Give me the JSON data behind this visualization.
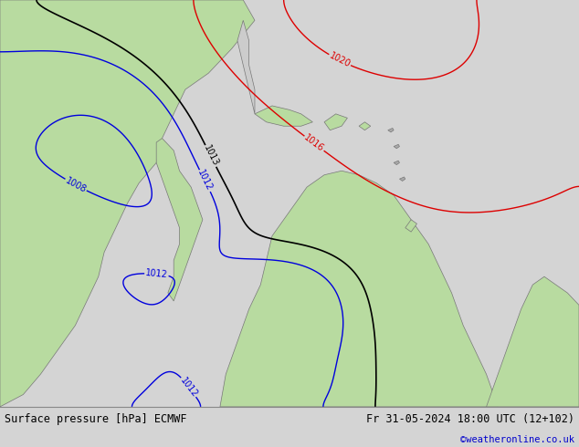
{
  "title_left": "Surface pressure [hPa] ECMWF",
  "title_right": "Fr 31-05-2024 18:00 UTC (12+102)",
  "credit": "©weatheronline.co.uk",
  "bg_color": "#ffffff",
  "footer_bg": "#d4d4d4",
  "footer_text_color": "#000000",
  "credit_color": "#0000cc",
  "land_color": "#b8dba0",
  "sea_color": "#f0f0f0",
  "figsize": [
    6.34,
    4.9
  ],
  "dpi": 100
}
